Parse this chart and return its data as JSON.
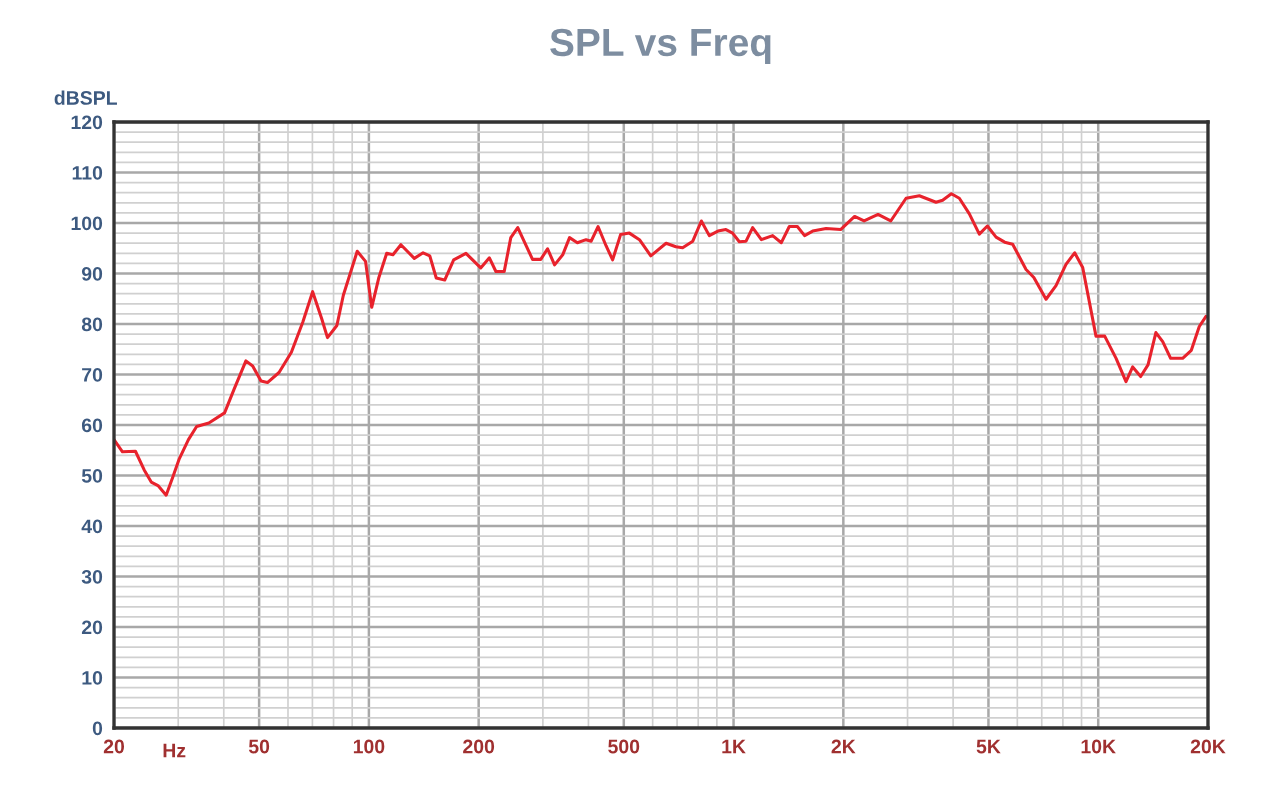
{
  "chart_data": {
    "type": "line",
    "title": "SPL vs Freq",
    "xlabel": "Hz",
    "ylabel": "dBSPL",
    "log": "x",
    "xlim": [
      20,
      20000
    ],
    "ylim": [
      0,
      120
    ],
    "xticks": [
      20,
      50,
      100,
      200,
      500,
      {
        "value": 1000,
        "label": "1K"
      },
      {
        "value": 2000,
        "label": "2K"
      },
      {
        "value": 5000,
        "label": "5K"
      },
      {
        "value": 10000,
        "label": "10K"
      },
      {
        "value": 20000,
        "label": "20K"
      }
    ],
    "yticks": [
      0,
      10,
      20,
      30,
      40,
      50,
      60,
      70,
      80,
      90,
      100,
      110,
      120
    ],
    "grid": true,
    "marker": "none",
    "line_style": "solid",
    "series": [
      {
        "color": "#e8222c",
        "x": [
          20,
          21.1,
          22.9,
          24.2,
          25.3,
          26.4,
          27.8,
          29,
          30.2,
          32,
          33.7,
          36.4,
          40.2,
          42.7,
          46,
          48,
          50.6,
          52.7,
          56.7,
          61.3,
          65.9,
          70.1,
          74.2,
          77,
          81.7,
          85.1,
          92.9,
          97.9,
          101.8,
          106.4,
          111.9,
          116.4,
          122.4,
          133.2,
          140.8,
          146.9,
          153,
          161.4,
          170.8,
          184.6,
          202.6,
          214,
          223,
          235,
          245,
          256,
          281,
          296,
          309,
          323,
          340,
          355,
          373,
          394,
          407,
          425,
          447,
          466,
          490,
          518,
          552,
          593,
          653,
          695,
          725,
          773,
          816,
          858,
          906,
          953,
          994,
          1037,
          1082,
          1128,
          1192,
          1280,
          1352,
          1422,
          1496,
          1566,
          1648,
          1794,
          1966,
          2148,
          2280,
          2490,
          2698,
          2972,
          3232,
          3590,
          3744,
          3956,
          4160,
          4432,
          4720,
          4966,
          5246,
          5540,
          5826,
          6340,
          6660,
          7192,
          7660,
          8158,
          8618,
          9066,
          9860,
          10418,
          11194,
          11916,
          12430,
          13074,
          13694,
          14392,
          15026,
          15798,
          17040,
          18000,
          18928,
          19748
        ],
        "values": [
          57.1,
          54.7,
          54.8,
          51.1,
          48.7,
          48,
          46.1,
          49.7,
          53.3,
          57.1,
          59.7,
          60.4,
          62.4,
          67.1,
          72.7,
          71.7,
          68.7,
          68.4,
          70.4,
          74.4,
          80.4,
          86.4,
          81.1,
          77.3,
          79.7,
          85.7,
          94.4,
          92.4,
          83.3,
          89.1,
          94,
          93.7,
          95.7,
          93,
          94.1,
          93.5,
          89.1,
          88.7,
          92.7,
          94,
          91.1,
          93.1,
          90.4,
          90.4,
          97.1,
          99.1,
          92.8,
          92.8,
          94.9,
          91.7,
          93.7,
          97.1,
          96.1,
          96.7,
          96.4,
          99.3,
          95.5,
          92.7,
          97.7,
          98,
          96.7,
          93.5,
          96,
          95.3,
          95.1,
          96.4,
          100.4,
          97.5,
          98.4,
          98.7,
          98,
          96.3,
          96.4,
          99.1,
          96.7,
          97.5,
          96.1,
          99.3,
          99.3,
          97.5,
          98.4,
          98.9,
          98.7,
          101.3,
          100.4,
          101.7,
          100.4,
          104.9,
          105.4,
          104.1,
          104.5,
          105.8,
          104.9,
          101.8,
          97.8,
          99.4,
          97.2,
          96.2,
          95.8,
          90.8,
          89.2,
          84.9,
          87.6,
          91.8,
          94.1,
          91.2,
          77.6,
          77.6,
          73.2,
          68.6,
          71.5,
          69.6,
          71.9,
          78.3,
          76.5,
          73.2,
          73.2,
          74.8,
          79.5,
          81.5
        ]
      }
    ]
  }
}
